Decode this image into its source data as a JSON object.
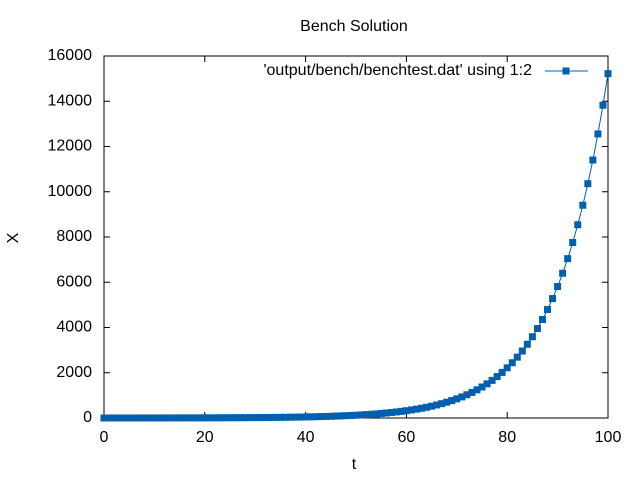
{
  "chart_data": {
    "type": "line",
    "title": "Bench Solution",
    "xlabel": "t",
    "ylabel": "X",
    "x": [
      0,
      1,
      2,
      3,
      4,
      5,
      6,
      7,
      8,
      9,
      10,
      11,
      12,
      13,
      14,
      15,
      16,
      17,
      18,
      19,
      20,
      21,
      22,
      23,
      24,
      25,
      26,
      27,
      28,
      29,
      30,
      31,
      32,
      33,
      34,
      35,
      36,
      37,
      38,
      39,
      40,
      41,
      42,
      43,
      44,
      45,
      46,
      47,
      48,
      49,
      50,
      51,
      52,
      53,
      54,
      55,
      56,
      57,
      58,
      59,
      60,
      61,
      62,
      63,
      64,
      65,
      66,
      67,
      68,
      69,
      70,
      71,
      72,
      73,
      74,
      75,
      76,
      77,
      78,
      79,
      80,
      81,
      82,
      83,
      84,
      85,
      86,
      87,
      88,
      89,
      90,
      91,
      92,
      93,
      94,
      95,
      96,
      97,
      98,
      99,
      100
    ],
    "series": [
      {
        "name": "'output/bench/benchtest.dat' using 1:2",
        "color": "#0060ad",
        "values": [
          1,
          1.1,
          1.2,
          1.3,
          1.5,
          1.6,
          1.8,
          2.0,
          2.2,
          2.4,
          2.6,
          2.9,
          3.2,
          3.5,
          3.9,
          4.2,
          4.7,
          5.1,
          5.7,
          6.2,
          6.9,
          7.6,
          8.3,
          9.2,
          10.1,
          11.1,
          12.2,
          13.5,
          14.8,
          16.3,
          18,
          19.8,
          21.8,
          24.0,
          26.4,
          29.1,
          32.0,
          35.3,
          38.9,
          42.8,
          47,
          52,
          57,
          63,
          69,
          76,
          84,
          92,
          102,
          112,
          123,
          136,
          150,
          165,
          181,
          200,
          220,
          242,
          267,
          294,
          323,
          356,
          392,
          431,
          475,
          523,
          576,
          634,
          698,
          769,
          847,
          932,
          1027,
          1130,
          1245,
          1370,
          1509,
          1662,
          1830,
          2015,
          2218,
          2442,
          2689,
          2961,
          3260,
          3590,
          3953,
          4353,
          4793,
          5277,
          5810,
          6397,
          7044,
          7756,
          8541,
          9404,
          10355,
          11402,
          12555,
          13824,
          15220
        ]
      }
    ],
    "xlim": [
      0,
      100
    ],
    "xticks": [
      0,
      20,
      40,
      60,
      80,
      100
    ],
    "ylim": [
      0,
      16000
    ],
    "yticks": [
      0,
      2000,
      4000,
      6000,
      8000,
      10000,
      12000,
      14000,
      16000
    ],
    "grid": false,
    "legend": "top-right"
  }
}
